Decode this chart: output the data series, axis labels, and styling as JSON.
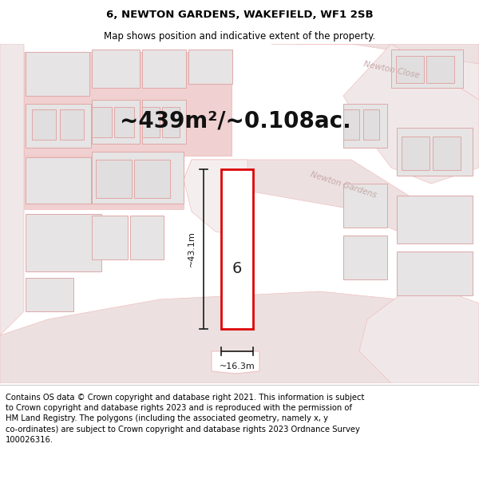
{
  "title_line1": "6, NEWTON GARDENS, WAKEFIELD, WF1 2SB",
  "title_line2": "Map shows position and indicative extent of the property.",
  "area_text": "~439m²/~0.108ac.",
  "width_label": "~16.3m",
  "height_label": "~43.1m",
  "property_number": "6",
  "street_label1": "Newton Close",
  "street_label2": "Newton Gardens",
  "footer_text": "Contains OS data © Crown copyright and database right 2021. This information is subject to Crown copyright and database rights 2023 and is reproduced with the permission of HM Land Registry. The polygons (including the associated geometry, namely x, y co-ordinates) are subject to Crown copyright and database rights 2023 Ordnance Survey 100026316.",
  "bg_color": "#ffffff",
  "map_bg": "#f7f2f2",
  "road_color": "#f0c0c0",
  "plot_outline_color": "#dd0000",
  "building_fill": "#e6e4e4",
  "building_stroke": "#e0a8a8",
  "title_fontsize": 9.5,
  "footer_fontsize": 7.2,
  "area_fontsize": 20,
  "label_fontsize": 8,
  "street_label_color": "#c8a8a8",
  "dim_line_color": "#1a1a1a"
}
